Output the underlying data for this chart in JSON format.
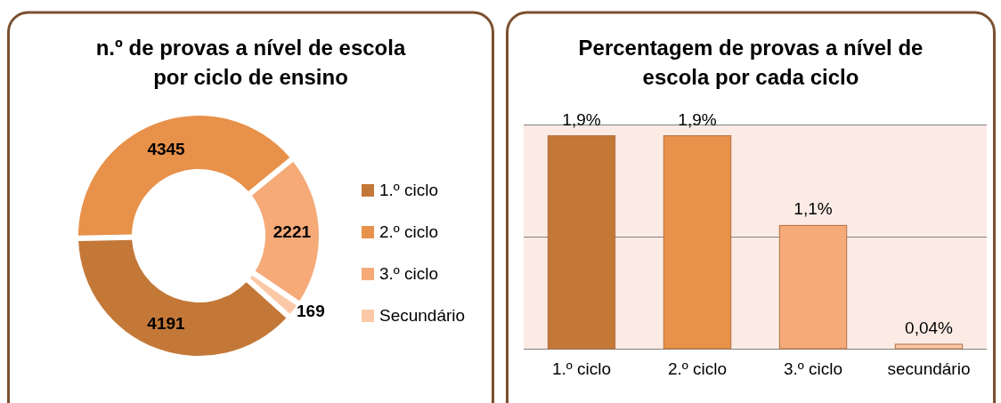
{
  "chart_data": [
    {
      "type": "donut",
      "title": "n.º de provas a nível de escola por ciclo de ensino",
      "categories": [
        "1.º ciclo",
        "2.º ciclo",
        "3.º ciclo",
        "Secundário"
      ],
      "values": [
        4191,
        4345,
        2221,
        169
      ],
      "colors": [
        "#c47838",
        "#e8914a",
        "#f5aa78",
        "#fbc9a8"
      ],
      "data_labels": true,
      "legend": "right"
    },
    {
      "type": "bar",
      "title": "Percentagem de provas a nível de escola por cada ciclo",
      "categories": [
        "1.º ciclo",
        "2.º ciclo",
        "3.º ciclo",
        "secundário"
      ],
      "values": [
        1.9,
        1.9,
        1.1,
        0.04
      ],
      "colors": [
        "#c47838",
        "#e8914a",
        "#f5aa78",
        "#fbc9a8"
      ],
      "value_labels": [
        "1,9%",
        "1,9%",
        "1,1%",
        "0,04%"
      ],
      "ylim": [
        0,
        2
      ],
      "yticks": [
        {
          "value": 0,
          "label": null
        },
        {
          "value": 1,
          "label": null
        },
        {
          "value": 2,
          "label": null
        }
      ],
      "tick_labels": "x"
    }
  ]
}
